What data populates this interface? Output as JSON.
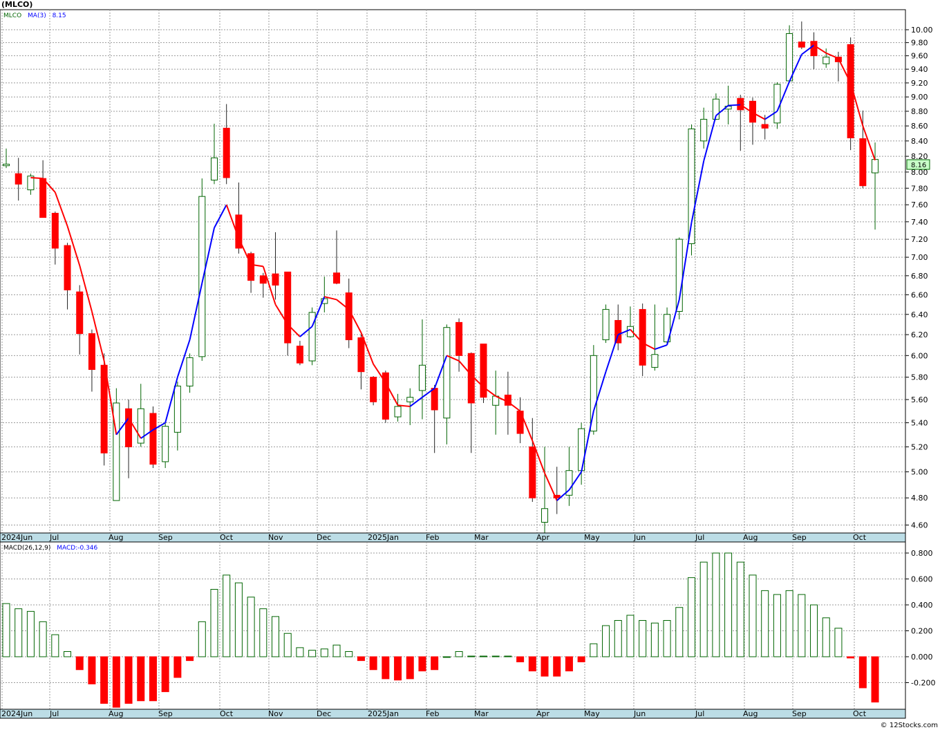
{
  "title": "(MLCO)",
  "legend": {
    "symbol": "MLCO",
    "ma_label": "MA(3)",
    "ma_value": "8.15",
    "last_price": "8.16"
  },
  "macd_legend": {
    "label": "MACD(26,12,9)",
    "value_label": "MACD:-0.346"
  },
  "x_labels": [
    "2024Jun",
    "Jul",
    "Aug",
    "Sep",
    "Oct",
    "Nov",
    "Dec",
    "2025Jan",
    "Feb",
    "Mar",
    "Apr",
    "May",
    "Jun",
    "Jul",
    "Aug",
    "Sep",
    "Oct"
  ],
  "watermark": "© 12Stocks.com",
  "colors": {
    "up": "#006400",
    "down": "#ff0000",
    "ma_up": "#0000ff",
    "ma_down": "#ff0000",
    "axis_band": "#bcdde6",
    "last_price_box": "#c8ffc8"
  },
  "chart_data": [
    {
      "type": "candlestick",
      "title": "(MLCO)",
      "scale": "log",
      "ylim": [
        4.5,
        10.3
      ],
      "y_ticks": [
        "4.60",
        "4.80",
        "5.00",
        "5.20",
        "5.40",
        "5.60",
        "5.80",
        "6.00",
        "6.20",
        "6.40",
        "6.60",
        "6.80",
        "7.00",
        "7.20",
        "7.40",
        "7.60",
        "7.80",
        "8.00",
        "8.20",
        "8.40",
        "8.60",
        "8.80",
        "9.00",
        "9.20",
        "9.40",
        "9.60",
        "9.80",
        "10.00"
      ],
      "series": [
        {
          "name": "MLCO",
          "candles": [
            {
              "o": 8.08,
              "h": 8.3,
              "l": 8.05,
              "c": 8.1
            },
            {
              "o": 7.98,
              "h": 8.18,
              "l": 7.65,
              "c": 7.85
            },
            {
              "o": 7.78,
              "h": 7.98,
              "l": 7.72,
              "c": 7.95
            },
            {
              "o": 7.92,
              "h": 8.15,
              "l": 7.45,
              "c": 7.45
            },
            {
              "o": 7.5,
              "h": 7.52,
              "l": 6.92,
              "c": 7.1
            },
            {
              "o": 7.13,
              "h": 7.16,
              "l": 6.45,
              "c": 6.65
            },
            {
              "o": 6.63,
              "h": 6.7,
              "l": 6.01,
              "c": 6.21
            },
            {
              "o": 6.21,
              "h": 6.25,
              "l": 5.67,
              "c": 5.87
            },
            {
              "o": 5.91,
              "h": 6.02,
              "l": 5.05,
              "c": 5.15
            },
            {
              "o": 4.78,
              "h": 5.7,
              "l": 4.78,
              "c": 5.57
            },
            {
              "o": 5.52,
              "h": 5.6,
              "l": 4.95,
              "c": 5.2
            },
            {
              "o": 5.23,
              "h": 5.74,
              "l": 5.2,
              "c": 5.52
            },
            {
              "o": 5.48,
              "h": 5.54,
              "l": 5.03,
              "c": 5.06
            },
            {
              "o": 5.08,
              "h": 5.4,
              "l": 5.03,
              "c": 5.37
            },
            {
              "o": 5.32,
              "h": 5.76,
              "l": 5.17,
              "c": 5.72
            },
            {
              "o": 5.72,
              "h": 6.02,
              "l": 5.66,
              "c": 5.98
            },
            {
              "o": 5.99,
              "h": 7.92,
              "l": 5.95,
              "c": 7.7
            },
            {
              "o": 7.9,
              "h": 8.63,
              "l": 7.85,
              "c": 8.18
            },
            {
              "o": 8.57,
              "h": 8.9,
              "l": 7.85,
              "c": 7.93
            },
            {
              "o": 7.48,
              "h": 7.87,
              "l": 7.04,
              "c": 7.1
            },
            {
              "o": 7.04,
              "h": 7.06,
              "l": 6.62,
              "c": 6.75
            },
            {
              "o": 6.8,
              "h": 6.83,
              "l": 6.57,
              "c": 6.72
            },
            {
              "o": 6.82,
              "h": 7.28,
              "l": 6.55,
              "c": 6.7
            },
            {
              "o": 6.84,
              "h": 6.84,
              "l": 6.0,
              "c": 6.12
            },
            {
              "o": 6.09,
              "h": 6.14,
              "l": 5.91,
              "c": 5.93
            },
            {
              "o": 5.95,
              "h": 6.47,
              "l": 5.91,
              "c": 6.42
            },
            {
              "o": 6.51,
              "h": 6.79,
              "l": 6.42,
              "c": 6.56
            },
            {
              "o": 6.83,
              "h": 7.3,
              "l": 6.71,
              "c": 6.72
            },
            {
              "o": 6.62,
              "h": 6.77,
              "l": 6.07,
              "c": 6.15
            },
            {
              "o": 6.17,
              "h": 6.2,
              "l": 5.69,
              "c": 5.85
            },
            {
              "o": 5.8,
              "h": 5.81,
              "l": 5.55,
              "c": 5.58
            },
            {
              "o": 5.84,
              "h": 5.86,
              "l": 5.4,
              "c": 5.43
            },
            {
              "o": 5.45,
              "h": 5.65,
              "l": 5.41,
              "c": 5.54
            },
            {
              "o": 5.58,
              "h": 5.7,
              "l": 5.38,
              "c": 5.62
            },
            {
              "o": 5.68,
              "h": 6.35,
              "l": 5.43,
              "c": 5.91
            },
            {
              "o": 5.7,
              "h": 5.73,
              "l": 5.15,
              "c": 5.51
            },
            {
              "o": 5.44,
              "h": 6.3,
              "l": 5.22,
              "c": 6.27
            },
            {
              "o": 6.32,
              "h": 6.36,
              "l": 5.85,
              "c": 6.0
            },
            {
              "o": 6.02,
              "h": 6.03,
              "l": 5.15,
              "c": 5.57
            },
            {
              "o": 6.11,
              "h": 6.11,
              "l": 5.57,
              "c": 5.62
            },
            {
              "o": 5.55,
              "h": 5.86,
              "l": 5.3,
              "c": 5.63
            },
            {
              "o": 5.64,
              "h": 5.85,
              "l": 5.3,
              "c": 5.55
            },
            {
              "o": 5.5,
              "h": 5.62,
              "l": 5.23,
              "c": 5.31
            },
            {
              "o": 5.2,
              "h": 5.44,
              "l": 4.77,
              "c": 4.8
            },
            {
              "o": 4.62,
              "h": 5.2,
              "l": 4.53,
              "c": 4.72
            },
            {
              "o": 4.82,
              "h": 5.04,
              "l": 4.68,
              "c": 4.8
            },
            {
              "o": 4.82,
              "h": 5.2,
              "l": 4.74,
              "c": 5.01
            },
            {
              "o": 5.01,
              "h": 5.4,
              "l": 4.9,
              "c": 5.35
            },
            {
              "o": 5.33,
              "h": 6.1,
              "l": 5.3,
              "c": 6.0
            },
            {
              "o": 6.15,
              "h": 6.5,
              "l": 6.12,
              "c": 6.45
            },
            {
              "o": 6.34,
              "h": 6.5,
              "l": 6.05,
              "c": 6.12
            },
            {
              "o": 6.18,
              "h": 6.48,
              "l": 6.17,
              "c": 6.28
            },
            {
              "o": 6.45,
              "h": 6.51,
              "l": 5.81,
              "c": 5.91
            },
            {
              "o": 5.89,
              "h": 6.5,
              "l": 5.86,
              "c": 6.01
            },
            {
              "o": 6.13,
              "h": 6.47,
              "l": 6.11,
              "c": 6.4
            },
            {
              "o": 6.43,
              "h": 7.22,
              "l": 6.35,
              "c": 7.2
            },
            {
              "o": 7.15,
              "h": 8.62,
              "l": 7.02,
              "c": 8.56
            },
            {
              "o": 8.4,
              "h": 8.85,
              "l": 8.3,
              "c": 8.69
            },
            {
              "o": 8.69,
              "h": 9.05,
              "l": 8.68,
              "c": 8.97
            },
            {
              "o": 8.83,
              "h": 9.16,
              "l": 8.62,
              "c": 8.87
            },
            {
              "o": 8.98,
              "h": 9.03,
              "l": 8.27,
              "c": 8.82
            },
            {
              "o": 8.94,
              "h": 8.99,
              "l": 8.35,
              "c": 8.65
            },
            {
              "o": 8.62,
              "h": 8.75,
              "l": 8.42,
              "c": 8.57
            },
            {
              "o": 8.64,
              "h": 9.21,
              "l": 8.56,
              "c": 9.18
            },
            {
              "o": 9.23,
              "h": 10.07,
              "l": 9.2,
              "c": 9.94
            },
            {
              "o": 9.81,
              "h": 10.13,
              "l": 9.7,
              "c": 9.73
            },
            {
              "o": 9.82,
              "h": 9.96,
              "l": 9.4,
              "c": 9.6
            },
            {
              "o": 9.48,
              "h": 9.71,
              "l": 9.42,
              "c": 9.58
            },
            {
              "o": 9.58,
              "h": 9.66,
              "l": 9.22,
              "c": 9.51
            },
            {
              "o": 9.77,
              "h": 9.88,
              "l": 8.28,
              "c": 8.44
            },
            {
              "o": 8.43,
              "h": 8.81,
              "l": 7.8,
              "c": 7.83
            },
            {
              "o": 7.99,
              "h": 8.38,
              "l": 7.31,
              "c": 8.16
            }
          ]
        },
        {
          "name": "MA(3)",
          "line": [
            null,
            null,
            7.93,
            7.92,
            7.75,
            7.35,
            6.91,
            6.43,
            5.95,
            5.3,
            5.44,
            5.27,
            5.34,
            5.4,
            5.8,
            6.15,
            6.72,
            7.33,
            7.6,
            7.21,
            6.92,
            6.9,
            6.5,
            6.3,
            6.18,
            6.28,
            6.58,
            6.55,
            6.45,
            6.22,
            5.92,
            5.75,
            5.55,
            5.54,
            5.62,
            5.7,
            6.0,
            5.95,
            5.82,
            5.71,
            5.63,
            5.58,
            5.5,
            5.25,
            4.99,
            4.78,
            4.86,
            5.0,
            5.5,
            5.85,
            6.2,
            6.25,
            6.12,
            6.06,
            6.1,
            6.55,
            7.39,
            8.14,
            8.74,
            8.88,
            8.89,
            8.78,
            8.69,
            8.8,
            9.22,
            9.62,
            9.76,
            9.64,
            9.56,
            9.2,
            8.6,
            8.15
          ]
        }
      ]
    },
    {
      "type": "bar",
      "title": "MACD(26,12,9)",
      "ylim": [
        -0.4,
        0.85
      ],
      "y_ticks": [
        "0.800",
        "0.600",
        "0.400",
        "0.200",
        "0.000",
        "-0.200"
      ],
      "series": [
        {
          "name": "MACD",
          "values": [
            0.41,
            0.37,
            0.35,
            0.27,
            0.17,
            0.04,
            -0.1,
            -0.21,
            -0.36,
            -0.39,
            -0.36,
            -0.34,
            -0.34,
            -0.27,
            -0.16,
            -0.03,
            0.27,
            0.52,
            0.63,
            0.57,
            0.46,
            0.37,
            0.31,
            0.18,
            0.07,
            0.05,
            0.06,
            0.09,
            0.04,
            -0.03,
            -0.1,
            -0.17,
            -0.18,
            -0.17,
            -0.11,
            -0.1,
            0.0,
            0.04,
            0.005,
            0.005,
            0.005,
            0.005,
            -0.04,
            -0.11,
            -0.15,
            -0.15,
            -0.11,
            -0.04,
            0.1,
            0.24,
            0.28,
            0.32,
            0.28,
            0.26,
            0.28,
            0.38,
            0.61,
            0.73,
            0.8,
            0.8,
            0.73,
            0.63,
            0.51,
            0.48,
            0.51,
            0.48,
            0.4,
            0.3,
            0.22,
            -0.01,
            -0.24,
            -0.35
          ]
        }
      ]
    }
  ]
}
